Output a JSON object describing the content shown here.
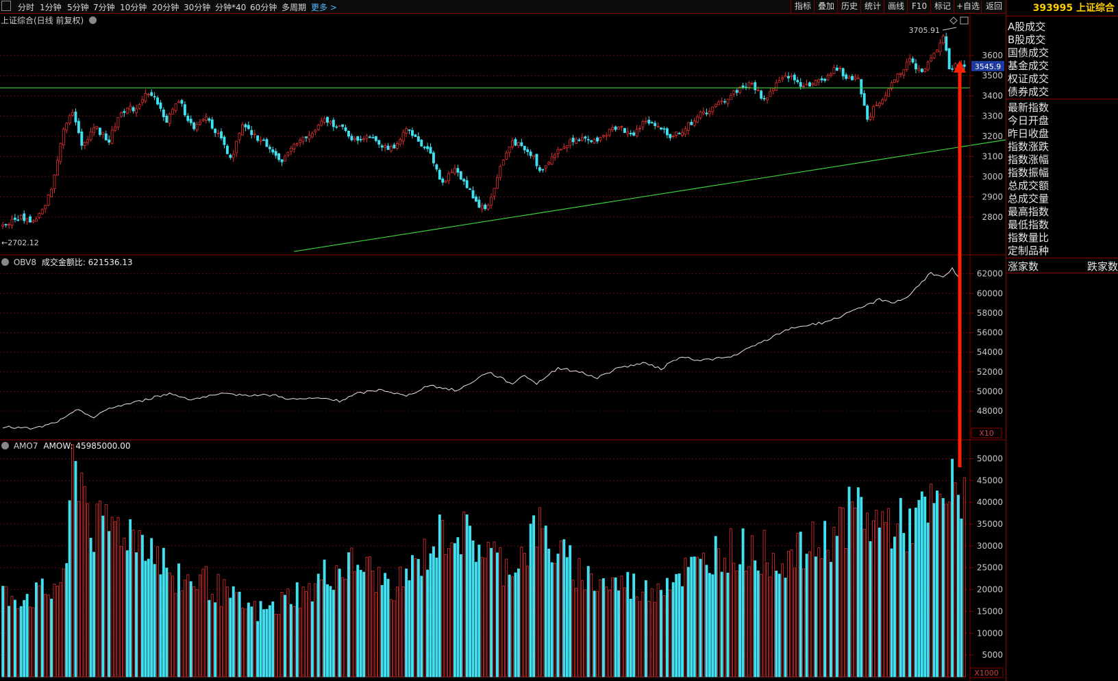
{
  "toolbar": {
    "periods": [
      "分时",
      "1分钟",
      "5分钟",
      "7分钟",
      "10分钟",
      "20分钟",
      "30分钟",
      "分钟*40",
      "60分钟",
      "多周期"
    ],
    "more": "更多 >",
    "tools": [
      "指标",
      "叠加",
      "历史",
      "统计",
      "画线",
      "F10",
      "标记",
      "+自选",
      "返回"
    ]
  },
  "sidebar": {
    "code_name": "393995 上证综合",
    "group1": [
      "A股成交",
      "B股成交",
      "国债成交",
      "基金成交",
      "权证成交",
      "债券成交"
    ],
    "group2": [
      "最新指数",
      "今日开盘",
      "昨日收盘",
      "指数涨跌",
      "指数涨幅",
      "指数振幅",
      "总成交额",
      "总成交量",
      "最高指数",
      "最低指数",
      "指数量比",
      "定制品种"
    ],
    "bottom_left": "涨家数",
    "bottom_right": "跌家数"
  },
  "colors": {
    "up": "#e03030",
    "down": "#40e0f0",
    "grid": "#5a1010",
    "trend": "#3cd03c",
    "arrow": "#ff2000",
    "obv": "#e8e8e8"
  },
  "chart_data": [
    {
      "type": "candlestick",
      "title": "上证综合(日线 前复权)",
      "ylim": [
        2620,
        3800
      ],
      "yticks": [
        2800,
        2900,
        3000,
        3100,
        3200,
        3300,
        3400,
        3500,
        3600
      ],
      "last_price_label": "3545.9",
      "annotations": {
        "high": "3705.91",
        "low": "←2702.12"
      },
      "path": [
        [
          0,
          2760
        ],
        [
          6,
          2800
        ],
        [
          10,
          2780
        ],
        [
          14,
          2850
        ],
        [
          17,
          3000
        ],
        [
          20,
          3250
        ],
        [
          23,
          3330
        ],
        [
          26,
          3150
        ],
        [
          30,
          3250
        ],
        [
          35,
          3180
        ],
        [
          39,
          3330
        ],
        [
          44,
          3340
        ],
        [
          47,
          3420
        ],
        [
          50,
          3380
        ],
        [
          54,
          3280
        ],
        [
          58,
          3380
        ],
        [
          63,
          3230
        ],
        [
          67,
          3300
        ],
        [
          70,
          3230
        ],
        [
          73,
          3150
        ],
        [
          75,
          3080
        ],
        [
          79,
          3250
        ],
        [
          83,
          3200
        ],
        [
          88,
          3150
        ],
        [
          92,
          3060
        ],
        [
          96,
          3170
        ],
        [
          101,
          3200
        ],
        [
          106,
          3280
        ],
        [
          111,
          3250
        ],
        [
          116,
          3180
        ],
        [
          121,
          3210
        ],
        [
          125,
          3160
        ],
        [
          129,
          3130
        ],
        [
          133,
          3230
        ],
        [
          137,
          3180
        ],
        [
          141,
          3120
        ],
        [
          145,
          2960
        ],
        [
          149,
          3050
        ],
        [
          153,
          2950
        ],
        [
          157,
          2860
        ],
        [
          160,
          2850
        ],
        [
          164,
          3050
        ],
        [
          168,
          3180
        ],
        [
          172,
          3130
        ],
        [
          175,
          3100
        ],
        [
          177,
          3030
        ],
        [
          181,
          3100
        ],
        [
          185,
          3150
        ],
        [
          189,
          3200
        ],
        [
          193,
          3170
        ],
        [
          198,
          3200
        ],
        [
          203,
          3260
        ],
        [
          207,
          3200
        ],
        [
          212,
          3280
        ],
        [
          216,
          3240
        ],
        [
          220,
          3200
        ],
        [
          225,
          3240
        ],
        [
          229,
          3300
        ],
        [
          233,
          3330
        ],
        [
          238,
          3380
        ],
        [
          243,
          3440
        ],
        [
          247,
          3460
        ],
        [
          251,
          3380
        ],
        [
          255,
          3460
        ],
        [
          259,
          3500
        ],
        [
          263,
          3460
        ],
        [
          267,
          3460
        ],
        [
          271,
          3490
        ],
        [
          275,
          3540
        ],
        [
          279,
          3480
        ],
        [
          282,
          3500
        ],
        [
          285,
          3270
        ],
        [
          287,
          3350
        ],
        [
          291,
          3400
        ],
        [
          295,
          3500
        ],
        [
          299,
          3580
        ],
        [
          302,
          3520
        ],
        [
          305,
          3560
        ],
        [
          308,
          3620
        ],
        [
          310,
          3700
        ],
        [
          312,
          3546
        ]
      ],
      "trendline": [
        [
          96,
          2630
        ],
        [
          338,
          3200
        ]
      ],
      "hline": 3440
    },
    {
      "type": "line",
      "title": "OBV8",
      "label": "成交金额比: 621536.13",
      "unit_label": "X10",
      "ylim": [
        45200,
        63800
      ],
      "yticks": [
        48000,
        50000,
        52000,
        54000,
        56000,
        58000,
        60000,
        62000
      ],
      "path": [
        [
          0,
          46400
        ],
        [
          10,
          46200
        ],
        [
          15,
          46600
        ],
        [
          20,
          47200
        ],
        [
          25,
          48200
        ],
        [
          30,
          47300
        ],
        [
          35,
          48300
        ],
        [
          45,
          49000
        ],
        [
          55,
          49800
        ],
        [
          62,
          49200
        ],
        [
          72,
          49700
        ],
        [
          90,
          49600
        ],
        [
          95,
          49200
        ],
        [
          106,
          49300
        ],
        [
          111,
          49000
        ],
        [
          117,
          49800
        ],
        [
          125,
          50200
        ],
        [
          133,
          49500
        ],
        [
          140,
          50600
        ],
        [
          150,
          50100
        ],
        [
          160,
          52000
        ],
        [
          168,
          50800
        ],
        [
          172,
          51700
        ],
        [
          176,
          50800
        ],
        [
          183,
          52400
        ],
        [
          190,
          52000
        ],
        [
          196,
          51400
        ],
        [
          203,
          52400
        ],
        [
          211,
          52900
        ],
        [
          217,
          52300
        ],
        [
          223,
          53500
        ],
        [
          230,
          53200
        ],
        [
          240,
          53500
        ],
        [
          250,
          55000
        ],
        [
          260,
          56500
        ],
        [
          270,
          57000
        ],
        [
          275,
          57500
        ],
        [
          282,
          58400
        ],
        [
          289,
          59400
        ],
        [
          294,
          59100
        ],
        [
          298,
          59600
        ],
        [
          306,
          62100
        ],
        [
          310,
          61600
        ],
        [
          313,
          62500
        ],
        [
          315,
          61600
        ]
      ]
    },
    {
      "type": "bar",
      "title": "AMO7",
      "label": "AMOW: 45985000.00",
      "unit_label": "X1000",
      "ylim": [
        0,
        54000
      ],
      "yticks": [
        5000,
        10000,
        15000,
        20000,
        25000,
        30000,
        35000,
        40000,
        45000,
        50000
      ],
      "env": [
        [
          0,
          20000
        ],
        [
          10,
          20000
        ],
        [
          16,
          21000
        ],
        [
          20,
          26000
        ],
        [
          23,
          52000
        ],
        [
          26,
          50000
        ],
        [
          30,
          36000
        ],
        [
          36,
          38000
        ],
        [
          42,
          36000
        ],
        [
          48,
          34000
        ],
        [
          54,
          27000
        ],
        [
          60,
          24000
        ],
        [
          66,
          24000
        ],
        [
          72,
          21000
        ],
        [
          78,
          18000
        ],
        [
          84,
          16000
        ],
        [
          90,
          17000
        ],
        [
          96,
          21000
        ],
        [
          100,
          20000
        ],
        [
          106,
          25000
        ],
        [
          112,
          27000
        ],
        [
          118,
          28000
        ],
        [
          124,
          24000
        ],
        [
          130,
          23000
        ],
        [
          136,
          27000
        ],
        [
          142,
          33000
        ],
        [
          148,
          37000
        ],
        [
          154,
          34000
        ],
        [
          160,
          31000
        ],
        [
          166,
          27000
        ],
        [
          172,
          31000
        ],
        [
          176,
          37000
        ],
        [
          182,
          31000
        ],
        [
          188,
          27000
        ],
        [
          194,
          24000
        ],
        [
          200,
          23000
        ],
        [
          206,
          23000
        ],
        [
          212,
          21000
        ],
        [
          218,
          24000
        ],
        [
          224,
          26000
        ],
        [
          230,
          27000
        ],
        [
          236,
          32000
        ],
        [
          242,
          31000
        ],
        [
          248,
          32000
        ],
        [
          254,
          30000
        ],
        [
          260,
          29000
        ],
        [
          266,
          32000
        ],
        [
          272,
          34000
        ],
        [
          277,
          38000
        ],
        [
          282,
          42000
        ],
        [
          286,
          38000
        ],
        [
          292,
          38000
        ],
        [
          298,
          37000
        ],
        [
          303,
          40000
        ],
        [
          307,
          41000
        ],
        [
          310,
          43000
        ],
        [
          313,
          46000
        ]
      ]
    }
  ]
}
